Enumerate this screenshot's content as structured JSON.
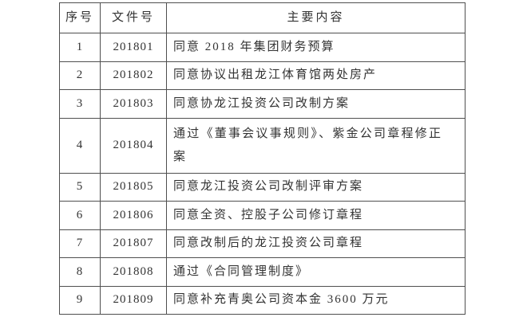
{
  "table": {
    "headers": [
      "序号",
      "文件号",
      "主要内容"
    ],
    "rows": [
      {
        "no": "1",
        "doc": "201801",
        "content": "同意 2018 年集团财务预算"
      },
      {
        "no": "2",
        "doc": "201802",
        "content": "同意协议出租龙江体育馆两处房产"
      },
      {
        "no": "3",
        "doc": "201803",
        "content": "同意协龙江投资公司改制方案"
      },
      {
        "no": "4",
        "doc": "201804",
        "content": "通过《董事会议事规则》、紫金公司章程修正案"
      },
      {
        "no": "5",
        "doc": "201805",
        "content": "同意龙江投资公司改制评审方案"
      },
      {
        "no": "6",
        "doc": "201806",
        "content": "同意全资、控股子公司修订章程"
      },
      {
        "no": "7",
        "doc": "201807",
        "content": "同意改制后的龙江投资公司章程"
      },
      {
        "no": "8",
        "doc": "201808",
        "content": "通过《合同管理制度》"
      },
      {
        "no": "9",
        "doc": "201809",
        "content": "同意补充青奥公司资本金 3600 万元"
      }
    ]
  },
  "colors": {
    "border": "#4f4f4f",
    "text": "#333333",
    "background": "#ffffff"
  }
}
